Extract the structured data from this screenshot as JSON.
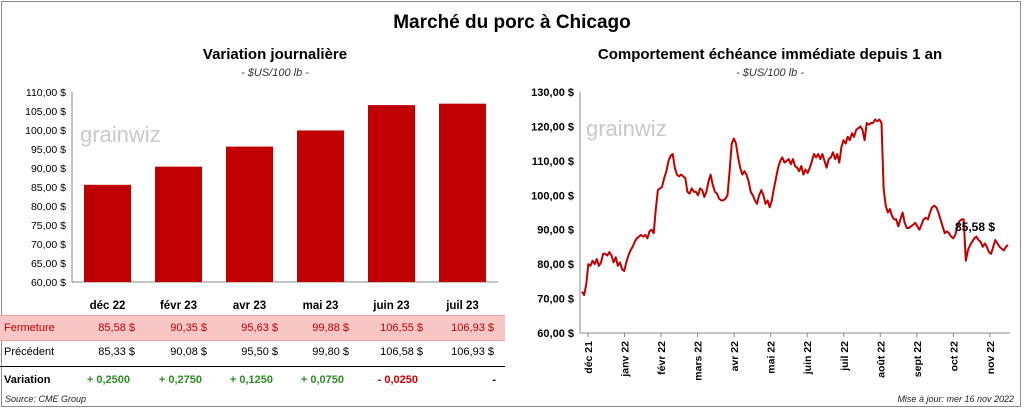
{
  "page_title": "Marché du porc à Chicago",
  "chart_data": [
    {
      "type": "bar",
      "title": "Variation  journalière",
      "subtitle": "- $US/100 lb -",
      "categories": [
        "déc 22",
        "févr 23",
        "avr 23",
        "mai 23",
        "juin 23",
        "juil 23"
      ],
      "values": [
        85.58,
        90.35,
        95.63,
        99.88,
        106.55,
        106.93
      ],
      "ylim": [
        60,
        110
      ],
      "yticks": [
        "60,00 $",
        "65,00 $",
        "70,00 $",
        "75,00 $",
        "80,00 $",
        "85,00 $",
        "90,00 $",
        "95,00 $",
        "100,00 $",
        "105,00 $",
        "110,00 $"
      ],
      "color": "#c00000",
      "watermark": "grainwiz"
    },
    {
      "type": "line",
      "title": "Comportement  échéance immédiate depuis 1 an",
      "subtitle": "- $US/100 lb -",
      "xticks": [
        "déc 21",
        "janv 22",
        "févr 22",
        "mars 22",
        "avr 22",
        "mai 22",
        "juin 22",
        "juil 22",
        "août 22",
        "sept 22",
        "oct 22",
        "nov 22"
      ],
      "ylim": [
        60,
        130
      ],
      "yticks": [
        "60,00 $",
        "70,00 $",
        "80,00 $",
        "90,00 $",
        "100,00 $",
        "110,00 $",
        "120,00 $",
        "130,00 $"
      ],
      "last_label": "85,58 $",
      "color": "#c00000",
      "watermark": "grainwiz",
      "series": [
        {
          "values": [
            72.0,
            71.0,
            74.0,
            80.0,
            79.5,
            81.0,
            80.0,
            81.5,
            79.5,
            80.5,
            83.0,
            83.0,
            82.5,
            83.5,
            82.5,
            80.5,
            82.0,
            79.5,
            80.5,
            78.5,
            78.0,
            80.5,
            82.5,
            84.0,
            85.0,
            86.5,
            87.5,
            88.0,
            88.5,
            88.0,
            88.5,
            87.5,
            89.5,
            90.0,
            89.0,
            96.0,
            101.5,
            102.0,
            102.5,
            105.0,
            107.0,
            110.0,
            111.5,
            112.0,
            108.0,
            106.0,
            105.5,
            106.0,
            105.5,
            105.0,
            101.0,
            100.5,
            102.0,
            101.0,
            101.0,
            100.0,
            102.0,
            101.5,
            99.5,
            101.0,
            104.0,
            106.0,
            103.0,
            101.0,
            100.5,
            99.0,
            98.5,
            98.5,
            99.0,
            100.0,
            107.0,
            115.0,
            116.5,
            115.0,
            111.0,
            108.0,
            106.0,
            107.0,
            106.0,
            104.0,
            101.0,
            100.0,
            98.5,
            97.5,
            100.0,
            101.5,
            100.0,
            97.5,
            98.5,
            96.5,
            98.5,
            102.0,
            105.0,
            108.0,
            110.0,
            111.0,
            109.5,
            110.0,
            110.5,
            109.0,
            110.5,
            108.5,
            108.0,
            107.0,
            108.5,
            106.0,
            107.5,
            106.5,
            108.0,
            110.0,
            112.0,
            111.0,
            112.0,
            110.5,
            112.0,
            110.0,
            108.0,
            110.5,
            111.0,
            112.5,
            110.5,
            112.0,
            109.5,
            114.0,
            116.0,
            115.0,
            117.0,
            116.0,
            118.0,
            117.0,
            119.0,
            119.5,
            120.0,
            119.0,
            116.0,
            121.0,
            120.5,
            121.0,
            121.0,
            122.0,
            121.5,
            122.0,
            121.0,
            102.0,
            97.0,
            95.0,
            96.0,
            94.0,
            93.0,
            93.0,
            91.0,
            93.0,
            95.0,
            92.0,
            90.5,
            90.5,
            91.0,
            91.5,
            92.0,
            91.0,
            90.0,
            91.5,
            93.0,
            93.5,
            93.0,
            95.0,
            96.5,
            97.0,
            96.5,
            95.0,
            93.0,
            91.0,
            89.0,
            89.5,
            89.0,
            88.0,
            87.5,
            88.5,
            91.0,
            92.5,
            93.0,
            93.0,
            81.0,
            84.0,
            85.5,
            86.5,
            87.5,
            88.0,
            87.0,
            86.5,
            85.0,
            86.0,
            85.0,
            83.5,
            83.0,
            85.0,
            87.0,
            86.0,
            85.0,
            84.5,
            84.0,
            85.0,
            85.58
          ]
        }
      ]
    }
  ],
  "table": {
    "rows": [
      {
        "label": "Fermeture",
        "values": [
          "85,58  $",
          "90,35  $",
          "95,63  $",
          "99,88  $",
          "106,55  $",
          "106,93  $"
        ]
      },
      {
        "label": "Précédent",
        "values": [
          "85,33  $",
          "90,08  $",
          "95,50  $",
          "99,80  $",
          "106,58  $",
          "106,93  $"
        ]
      },
      {
        "label": "Variation",
        "values": [
          "+ 0,2500",
          "+ 0,2750",
          "+ 0,1250",
          "+ 0,0750",
          "- 0,0250",
          "-"
        ]
      }
    ]
  },
  "footer": {
    "source": "Source: CME Group",
    "updated": "Mise à jour: mer 16 nov 2022"
  }
}
